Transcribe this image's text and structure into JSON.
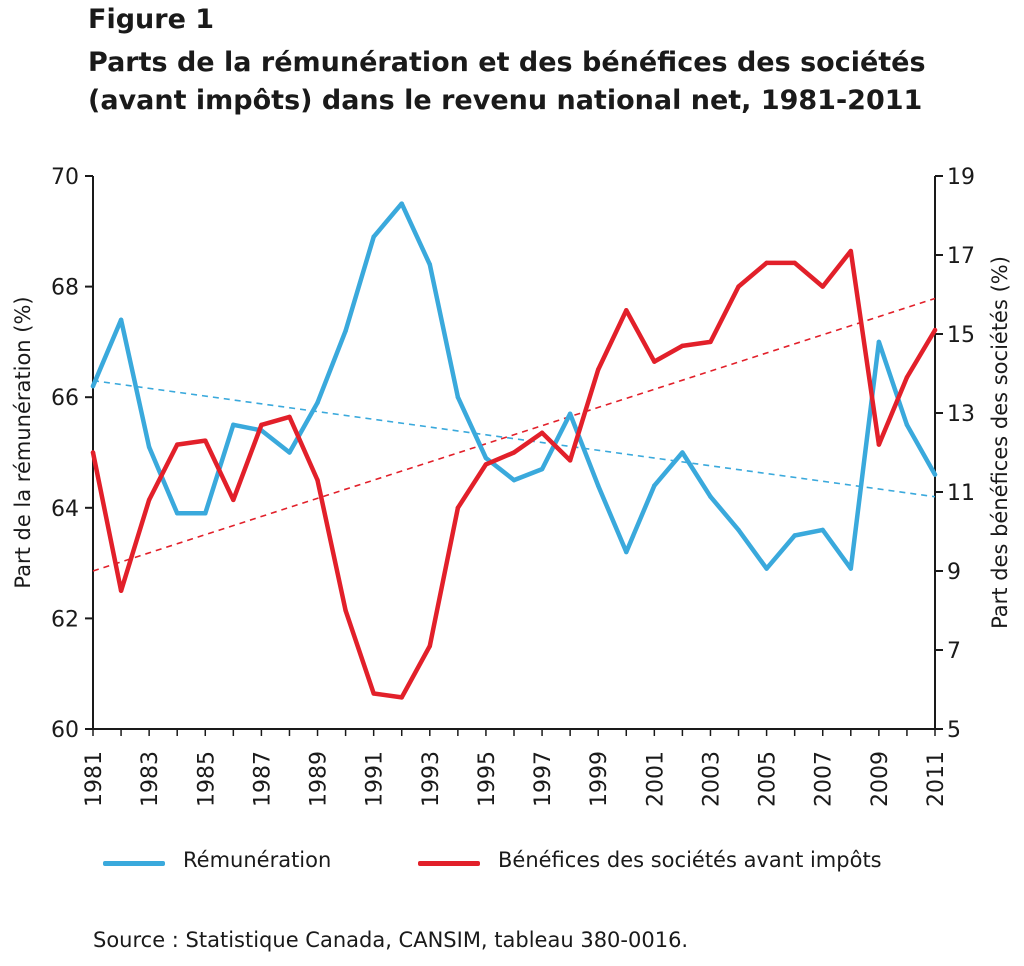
{
  "figure": {
    "label": "Figure 1",
    "title_line1": "Parts de la rémunération et des bénéfices des sociétés",
    "title_line2": "(avant impôts) dans le revenu national net, 1981-2011"
  },
  "source": "Source : Statistique Canada, CANSIM, tableau 380-0016.",
  "colors": {
    "remuneration": "#3aa9dc",
    "benefices": "#e2202a",
    "axis": "#1a1a1a"
  },
  "chart_data": {
    "type": "line",
    "title": "Parts de la rémunération et des bénéfices des sociétés (avant impôts) dans le revenu national net, 1981-2011",
    "x": [
      1981,
      1982,
      1983,
      1984,
      1985,
      1986,
      1987,
      1988,
      1989,
      1990,
      1991,
      1992,
      1993,
      1994,
      1995,
      1996,
      1997,
      1998,
      1999,
      2000,
      2001,
      2002,
      2003,
      2004,
      2005,
      2006,
      2007,
      2008,
      2009,
      2010,
      2011
    ],
    "xticks": [
      "1981",
      "1983",
      "1985",
      "1987",
      "1989",
      "1991",
      "1993",
      "1995",
      "1997",
      "1999",
      "2001",
      "2003",
      "2005",
      "2007",
      "2009",
      "2011"
    ],
    "y_left": {
      "label": "Part de la rémunération (%)",
      "lim": [
        60,
        70
      ],
      "ticks": [
        "60",
        "62",
        "64",
        "66",
        "68",
        "70"
      ]
    },
    "y_right": {
      "label": "Part des bénéfices des sociétés (%)",
      "lim": [
        5,
        19
      ],
      "ticks": [
        "5",
        "7",
        "9",
        "11",
        "13",
        "15",
        "17",
        "19"
      ]
    },
    "series": [
      {
        "name": "Rémunération",
        "axis": "left",
        "values": [
          66.2,
          67.4,
          65.1,
          63.9,
          63.9,
          65.5,
          65.4,
          65.0,
          65.9,
          67.2,
          68.9,
          69.5,
          68.4,
          66.0,
          64.9,
          64.5,
          64.7,
          65.7,
          64.4,
          63.2,
          64.4,
          65.0,
          64.2,
          63.6,
          62.9,
          63.5,
          63.6,
          62.9,
          67.0,
          65.5,
          64.6
        ]
      },
      {
        "name": "Bénéfices des sociétés avant impôts",
        "axis": "right",
        "values": [
          12.0,
          8.5,
          10.8,
          12.2,
          12.3,
          10.8,
          12.7,
          12.9,
          11.3,
          8.0,
          5.9,
          5.8,
          7.1,
          10.6,
          11.7,
          12.0,
          12.5,
          11.8,
          14.1,
          15.6,
          14.3,
          14.7,
          14.8,
          16.2,
          16.8,
          16.8,
          16.2,
          17.1,
          12.2,
          13.9,
          15.1
        ]
      }
    ],
    "trendlines": [
      {
        "series": "Rémunération",
        "axis": "left",
        "x": [
          1981,
          2011
        ],
        "y": [
          66.3,
          64.2
        ],
        "style": "dashed"
      },
      {
        "series": "Bénéfices des sociétés avant impôts",
        "axis": "right",
        "x": [
          1981,
          2011
        ],
        "y": [
          9.0,
          15.9
        ],
        "style": "dashed"
      }
    ],
    "legend": {
      "position": "bottom"
    }
  }
}
